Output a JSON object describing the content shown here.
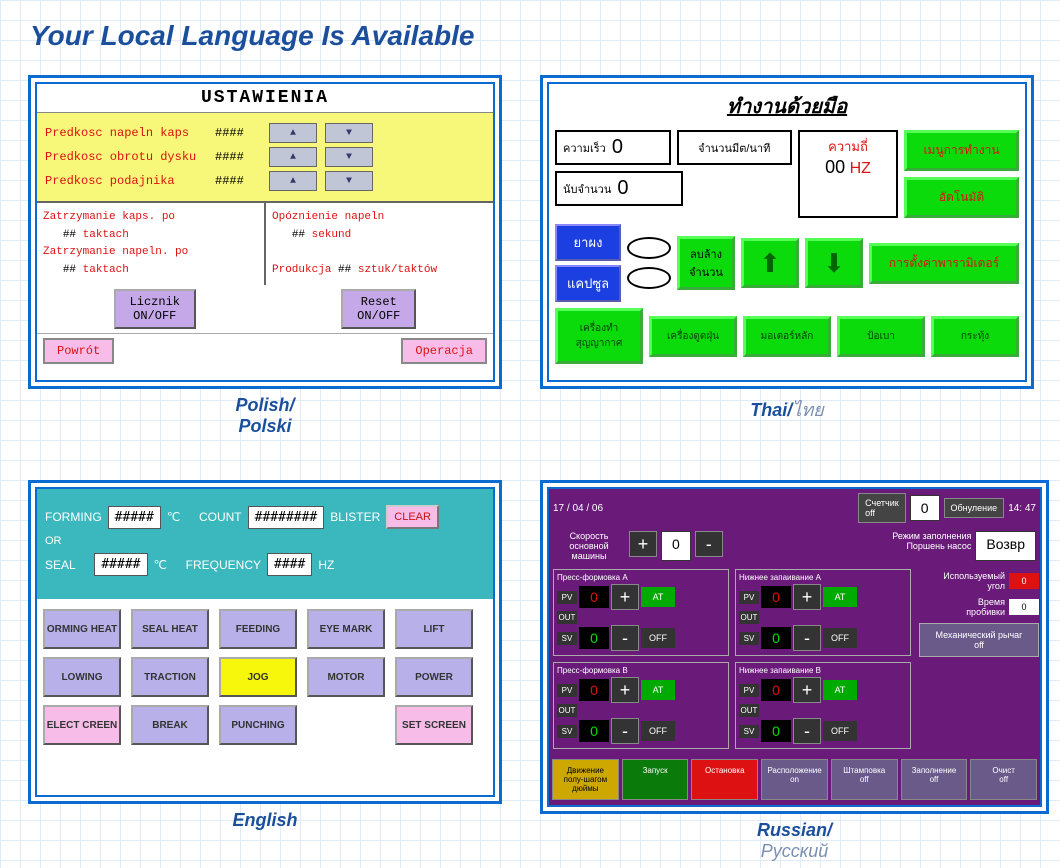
{
  "page_title": "Your Local Language Is Available",
  "panels": {
    "polish": {
      "caption": "Polish/",
      "caption_native": "Polski",
      "title": "USTAWIENIA",
      "rows": [
        {
          "label": "Predkosc napeln kaps",
          "value": "####"
        },
        {
          "label": "Predkosc obrotu dysku",
          "value": "####"
        },
        {
          "label": "Predkosc podajnika",
          "value": "####"
        }
      ],
      "left_block": {
        "line1": "Zatrzymanie kaps. po",
        "val1": "##",
        "unit1": "taktach",
        "line2": "Zatrzymanie napeln. po",
        "val2": "##",
        "unit2": "taktach"
      },
      "right_block": {
        "line1": "Opóznienie napeln",
        "val1": "##",
        "unit1": "sekund",
        "line2": "Produkcja",
        "val2": "##",
        "unit2": "sztuk/taktów"
      },
      "btn_licznik": "Licznik\nON/OFF",
      "btn_reset": "Reset\nON/OFF",
      "btn_powrot": "Powrót",
      "btn_operacja": "Operacja"
    },
    "thai": {
      "caption": "Thai/",
      "caption_native": "ไทย",
      "title": "ทำงานด้วยมือ",
      "speed_label": "ความเร็ว",
      "speed_val": "0",
      "count_label": "จำนวนมีต/นาที",
      "count2_label": "นับจำนวน",
      "count2_val": "0",
      "freq_label": "ความถี่",
      "freq_val": "00",
      "freq_unit": "HZ",
      "green_btns": [
        "เมนูการทำงาน",
        "อัตโนมัติ",
        "การตั้งค่าพารามิเตอร์"
      ],
      "blue_btns": [
        "ยาผง",
        "แคปซูล"
      ],
      "del_label": "ลบล้าง\nจำนวน",
      "bottom": [
        "เครื่องทำสุญญากาศ",
        "เครื่องดูดฝุ่น",
        "มอเตอร์หลัก",
        "ป้อเบา",
        "กระทุ้ง"
      ]
    },
    "english": {
      "caption": "English",
      "forming": "FORMING",
      "forming_val": "#####",
      "deg": "℃",
      "or": "OR",
      "seal": "SEAL",
      "seal_val": "#####",
      "count": "COUNT",
      "count_val": "########",
      "blister": "BLISTER",
      "clear": "CLEAR",
      "freq": "FREQUENCY",
      "freq_val": "####",
      "hz": "HZ",
      "buttons": [
        "ORMING HEAT",
        "SEAL HEAT",
        "FEEDING",
        "EYE MARK",
        "LIFT",
        "LOWING",
        "TRACTION",
        "JOG",
        "MOTOR",
        "POWER",
        "ELECT CREEN",
        "BREAK",
        "PUNCHING",
        "",
        "SET SCREEN"
      ]
    },
    "russian": {
      "caption": "Russian/",
      "caption_native": "Русский",
      "date": "17 / 04 / 06",
      "time": "14: 47",
      "counter_btn": "Счетчик\noff",
      "counter_val": "0",
      "reset_btn": "Обнуление",
      "return_btn": "Возвр",
      "speed_label": "Скорость\nосновной\nмашины",
      "speed_val": "0",
      "mode_label": "Режим заполнения",
      "piston_label": "Поршень насос",
      "panels_titles": [
        "Пресс-формовка А",
        "Нижнее запаивание А",
        "Пресс-формовка В",
        "Нижнее запаивание В"
      ],
      "pv": "PV",
      "out": "OUT",
      "sv": "SV",
      "at": "AT",
      "off": "OFF",
      "pv_val": "0",
      "sv_val": "0",
      "angle_label": "Используемый\nугол",
      "angle_val": "0",
      "punch_label": "Время\nпробивки",
      "punch_val": "0",
      "mech_label": "Механический рычаг\noff",
      "bottom": [
        "Движение\nполу-шагом\nдюймы",
        "Запуск",
        "Остановка",
        "Расположение\non",
        "Штамповка\noff",
        "Заполнение\noff",
        "Очист\noff"
      ]
    }
  }
}
